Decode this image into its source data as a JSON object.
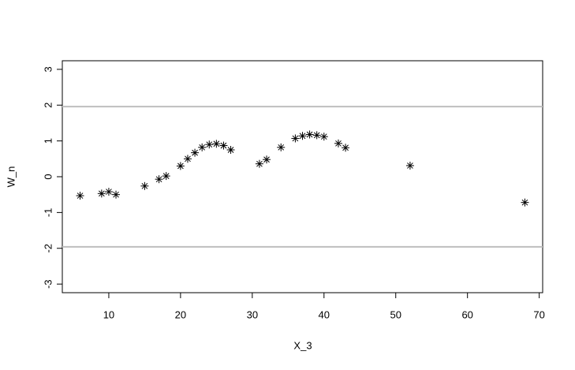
{
  "chart_data": {
    "type": "scatter",
    "xlabel": "X_3",
    "ylabel": "W_n",
    "x": [
      6,
      9,
      10,
      11,
      15,
      17,
      18,
      20,
      21,
      22,
      23,
      24,
      25,
      26,
      27,
      31,
      32,
      34,
      36,
      37,
      38,
      39,
      40,
      42,
      43,
      52,
      68
    ],
    "values": [
      -0.53,
      -0.47,
      -0.42,
      -0.5,
      -0.26,
      -0.07,
      0.02,
      0.3,
      0.5,
      0.67,
      0.82,
      0.9,
      0.92,
      0.87,
      0.75,
      0.36,
      0.48,
      0.82,
      1.07,
      1.14,
      1.18,
      1.16,
      1.12,
      0.93,
      0.81,
      0.31,
      -0.72
    ],
    "color": "#000000",
    "hlines": [
      -1.96,
      1.96
    ],
    "hline_color": "#bebebe",
    "xlim": [
      3.52,
      70.48
    ],
    "ylim": [
      -3.24,
      3.24
    ],
    "xticks": [
      10,
      20,
      30,
      40,
      50,
      60,
      70
    ],
    "yticks": [
      -3,
      -2,
      -1,
      0,
      1,
      2,
      3
    ]
  }
}
